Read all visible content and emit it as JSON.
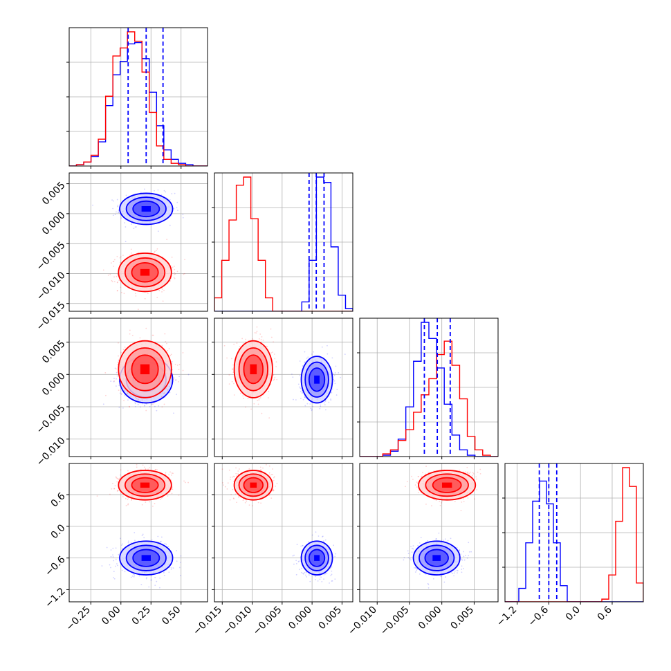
{
  "chart_data": {
    "type": "corner",
    "parameters": [
      {
        "ticks": [
          -0.25,
          0.0,
          0.25,
          0.5
        ],
        "tick_labels": [
          "−0.25",
          "0.00",
          "0.25",
          "0.50"
        ],
        "range": [
          -0.43,
          0.72
        ]
      },
      {
        "ticks": [
          -0.015,
          -0.01,
          -0.005,
          0.0,
          0.005
        ],
        "tick_labels": [
          "−0.015",
          "−0.010",
          "−0.005",
          "0.000",
          "0.005"
        ],
        "range": [
          -0.0163,
          0.0068
        ]
      },
      {
        "ticks": [
          -0.01,
          -0.005,
          0.0,
          0.005
        ],
        "tick_labels": [
          "−0.010",
          "−0.005",
          "0.000",
          "0.005"
        ],
        "range": [
          -0.0127,
          0.0087
        ]
      },
      {
        "ticks": [
          -1.2,
          -0.6,
          0.0,
          0.6
        ],
        "tick_labels": [
          "−1.2",
          "−0.6",
          "0.0",
          "0.6"
        ],
        "range": [
          -1.43,
          1.19
        ]
      }
    ],
    "series": [
      {
        "color": "#0000ff",
        "mean": [
          0.21,
          0.0008,
          -0.0008,
          -0.6
        ],
        "sd": [
          0.11,
          0.0013,
          0.0018,
          0.16
        ],
        "quantiles": [
          [
            0.06,
            0.21,
            0.35
          ],
          [
            -0.0005,
            0.0007,
            0.002
          ],
          [
            -0.0027,
            -0.0007,
            0.0013
          ],
          [
            -0.78,
            -0.6,
            -0.45
          ]
        ]
      },
      {
        "color": "#ff0000",
        "mean": [
          0.2,
          -0.0098,
          0.0008,
          0.78
        ],
        "sd": [
          0.11,
          0.0016,
          0.0022,
          0.14
        ],
        "quantiles": null
      }
    ],
    "hist_1d": [
      {
        "bins": 19,
        "blue": [
          0,
          1,
          3,
          7,
          18,
          45,
          68,
          78,
          91,
          92,
          80,
          55,
          30,
          12,
          5,
          2,
          1,
          0,
          0
        ],
        "red": [
          0,
          1,
          3,
          8,
          20,
          52,
          82,
          88,
          100,
          93,
          70,
          40,
          15,
          5,
          2,
          1,
          0,
          0,
          0
        ]
      },
      {
        "bins": 19,
        "blue": [
          0,
          0,
          0,
          0,
          0,
          0,
          0,
          0,
          0,
          0,
          0,
          0,
          7,
          38,
          100,
          96,
          48,
          12,
          2
        ],
        "red": [
          10,
          38,
          68,
          94,
          100,
          69,
          38,
          10,
          0,
          0,
          0,
          0,
          0,
          0,
          0,
          0,
          0,
          0,
          0
        ]
      },
      {
        "bins": 18,
        "blue": [
          0,
          0,
          0,
          1,
          4,
          13,
          37,
          71,
          100,
          88,
          66,
          39,
          16,
          5,
          1,
          0,
          0,
          0
        ],
        "red": [
          0,
          0,
          0,
          2,
          5,
          12,
          20,
          33,
          46,
          58,
          76,
          86,
          68,
          43,
          15,
          5,
          1,
          0
        ]
      },
      {
        "bins": 20,
        "blue": [
          0,
          0,
          10,
          44,
          75,
          90,
          73,
          44,
          12,
          0,
          0,
          0,
          0,
          0,
          0,
          0,
          0,
          0,
          0,
          0
        ],
        "red": [
          0,
          0,
          0,
          0,
          0,
          0,
          0,
          0,
          0,
          0,
          0,
          0,
          0,
          0,
          2,
          20,
          60,
          100,
          86,
          14
        ]
      }
    ],
    "grid": true,
    "legend": "none"
  }
}
